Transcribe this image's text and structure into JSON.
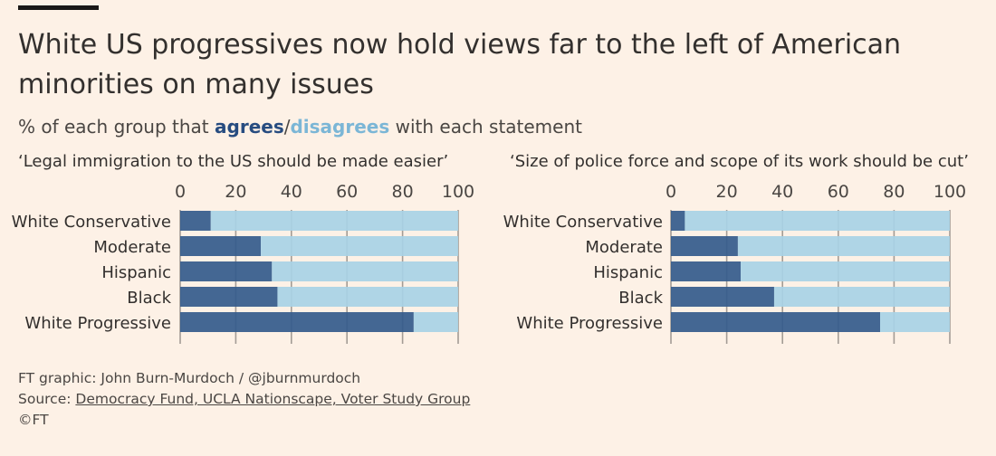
{
  "header": {
    "title": "White US progressives now hold views far to the left of American minorities on many issues",
    "subtitle_prefix": "% of each group that ",
    "subtitle_agrees": "agrees",
    "subtitle_slash": "/",
    "subtitle_disagrees": "disagrees",
    "subtitle_suffix": " with each statement"
  },
  "colors": {
    "agree": "#345b8c",
    "disagree": "#a8d3e6",
    "background": "#fdf1e6",
    "gridline": "#a39c95"
  },
  "chart_data": [
    {
      "type": "bar",
      "orientation": "horizontal",
      "stacked": true,
      "title": "‘Legal immigration to the US should be made easier’",
      "categories": [
        "White Conservative",
        "Moderate",
        "Hispanic",
        "Black",
        "White Progressive"
      ],
      "series": [
        {
          "name": "agrees",
          "values": [
            11,
            29,
            33,
            35,
            84
          ]
        },
        {
          "name": "disagrees",
          "values": [
            89,
            71,
            67,
            65,
            16
          ]
        }
      ],
      "xlim": [
        0,
        100
      ],
      "xticks": [
        0,
        20,
        40,
        60,
        80,
        100
      ],
      "grid": true
    },
    {
      "type": "bar",
      "orientation": "horizontal",
      "stacked": true,
      "title": "‘Size of police force and scope of its work should be cut’",
      "categories": [
        "White Conservative",
        "Moderate",
        "Hispanic",
        "Black",
        "White Progressive"
      ],
      "series": [
        {
          "name": "agrees",
          "values": [
            5,
            24,
            25,
            37,
            75
          ]
        },
        {
          "name": "disagrees",
          "values": [
            95,
            76,
            75,
            63,
            25
          ]
        }
      ],
      "xlim": [
        0,
        100
      ],
      "xticks": [
        0,
        20,
        40,
        60,
        80,
        100
      ],
      "grid": true
    }
  ],
  "footer": {
    "credit": "FT graphic: John Burn-Murdoch / @jburnmurdoch",
    "source_label": "Source: ",
    "source_link": "Democracy Fund, UCLA Nationscape, Voter Study Group",
    "copyright": "©FT"
  }
}
